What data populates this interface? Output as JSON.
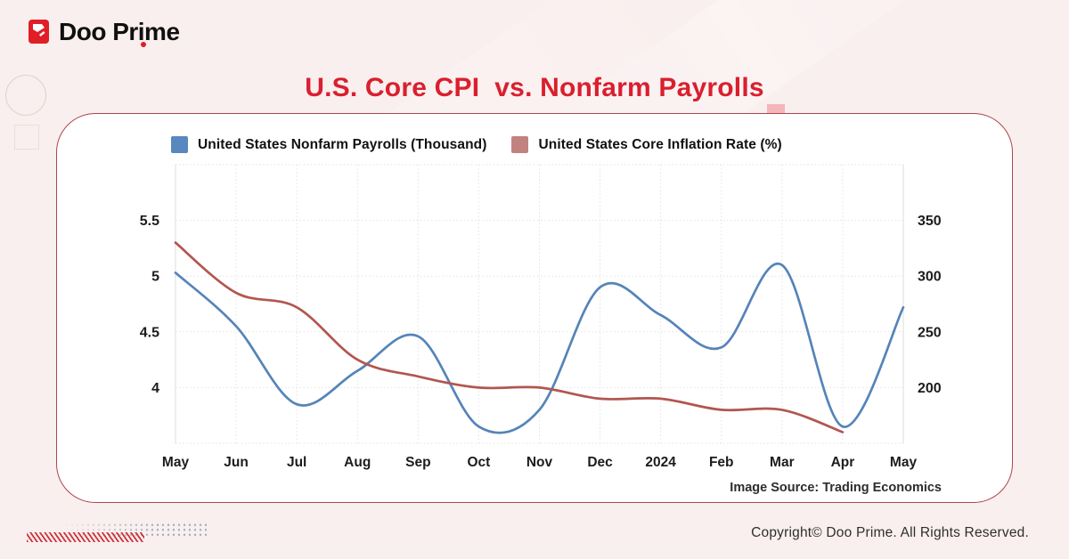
{
  "logo": {
    "brand": "Doo Prime"
  },
  "title": "U.S. Core CPI  vs. Nonfarm Payrolls",
  "source_note": "Image Source: Trading Economics",
  "copyright": "Copyright© Doo Prime. All Rights Reserved.",
  "colors": {
    "brand_red": "#e01e26",
    "title_red": "#da1f2e",
    "card_border": "#ac464d",
    "pink_accent": "#f4b6ba",
    "hatch_red": "#cf333b",
    "dot_gray": "#9cacc0",
    "grid_dotted": "#e2e2e2",
    "grid_boundary": "#dcdcdc"
  },
  "chart_data": {
    "type": "line",
    "title": "U.S. Core CPI vs. Nonfarm Payrolls",
    "x_categories": [
      "May",
      "Jun",
      "Jul",
      "Aug",
      "Sep",
      "Oct",
      "Nov",
      "Dec",
      "2024",
      "Feb",
      "Mar",
      "Apr",
      "May"
    ],
    "series": [
      {
        "name": "United States Nonfarm Payrolls (Thousand)",
        "axis": "right",
        "color": "#5988c0",
        "line_color": "#5584b8",
        "values": [
          303,
          255,
          185,
          215,
          246,
          165,
          180,
          290,
          265,
          236,
          310,
          165,
          272
        ]
      },
      {
        "name": "United States Core Inflation Rate (%)",
        "axis": "left",
        "color": "#c28380",
        "line_color": "#b2564f",
        "values": [
          5.3,
          4.85,
          4.72,
          4.25,
          4.1,
          4.0,
          4.0,
          3.9,
          3.9,
          3.8,
          3.8,
          3.6
        ]
      }
    ],
    "left_axis": {
      "ticks": [
        5.5,
        5,
        4.5,
        4
      ],
      "range": [
        3.5,
        6.0
      ]
    },
    "right_axis": {
      "ticks": [
        350,
        300,
        250,
        200
      ],
      "range": [
        150,
        400
      ]
    },
    "grid": "dotted",
    "legend_position": "top-left"
  }
}
